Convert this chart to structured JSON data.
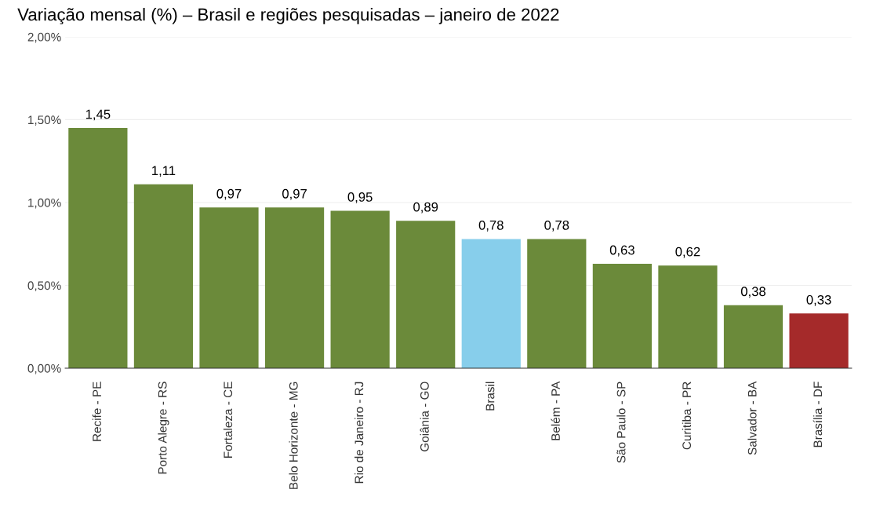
{
  "chart_data": {
    "type": "bar",
    "title": "Variação mensal (%) – Brasil e regiões pesquisadas – janeiro de 2022",
    "categories": [
      "Recife - PE",
      "Porto Alegre - RS",
      "Fortaleza - CE",
      "Belo Horizonte - MG",
      "Rio de Janeiro - RJ",
      "Goiânia - GO",
      "Brasil",
      "Belém - PA",
      "São Paulo - SP",
      "Curitiba - PR",
      "Salvador - BA",
      "Brasília - DF"
    ],
    "values": [
      1.45,
      1.11,
      0.97,
      0.97,
      0.95,
      0.89,
      0.78,
      0.78,
      0.63,
      0.62,
      0.38,
      0.33
    ],
    "value_labels": [
      "1,45",
      "1,11",
      "0,97",
      "0,97",
      "0,95",
      "0,89",
      "0,78",
      "0,78",
      "0,63",
      "0,62",
      "0,38",
      "0,33"
    ],
    "colors": [
      "#6b8a3a",
      "#6b8a3a",
      "#6b8a3a",
      "#6b8a3a",
      "#6b8a3a",
      "#6b8a3a",
      "#87ceeb",
      "#6b8a3a",
      "#6b8a3a",
      "#6b8a3a",
      "#6b8a3a",
      "#a52a2a"
    ],
    "ylim": [
      0,
      2
    ],
    "yticks": [
      {
        "value": 0,
        "label": "0,00%"
      },
      {
        "value": 0.5,
        "label": "0,50%"
      },
      {
        "value": 1,
        "label": "1,00%"
      },
      {
        "value": 1.5,
        "label": "1,50%"
      },
      {
        "value": 2,
        "label": "2,00%"
      }
    ],
    "grid": "y"
  }
}
